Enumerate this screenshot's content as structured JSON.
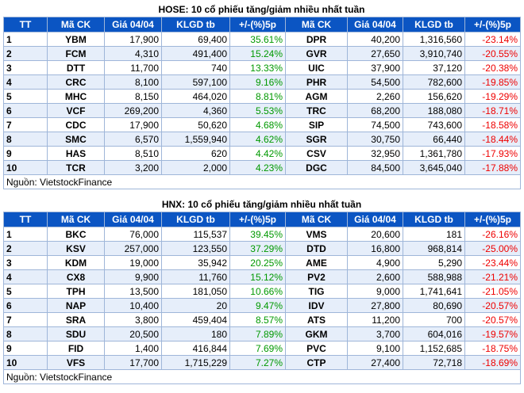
{
  "tables": [
    {
      "title": "HOSE: 10 cổ phiếu tăng/giảm nhiều nhất tuần",
      "headers": [
        "TT",
        "Mã CK",
        "Giá 04/04",
        "KLGD tb",
        "+/-(%)5p",
        "Mã CK",
        "Giá 04/04",
        "KLGD tb",
        "+/-(%)5p"
      ],
      "rows": [
        [
          "1",
          "YBM",
          "17,900",
          "69,400",
          "35.61%",
          "DPR",
          "40,200",
          "1,316,560",
          "-23.14%"
        ],
        [
          "2",
          "FCM",
          "4,310",
          "491,400",
          "15.24%",
          "GVR",
          "27,650",
          "3,910,740",
          "-20.55%"
        ],
        [
          "3",
          "DTT",
          "11,700",
          "740",
          "13.33%",
          "UIC",
          "37,900",
          "37,120",
          "-20.38%"
        ],
        [
          "4",
          "CRC",
          "8,100",
          "597,100",
          "9.16%",
          "PHR",
          "54,500",
          "782,600",
          "-19.85%"
        ],
        [
          "5",
          "MHC",
          "8,150",
          "464,020",
          "8.81%",
          "AGM",
          "2,260",
          "156,620",
          "-19.29%"
        ],
        [
          "6",
          "VCF",
          "269,200",
          "4,360",
          "5.53%",
          "TRC",
          "68,200",
          "188,080",
          "-18.71%"
        ],
        [
          "7",
          "CDC",
          "17,900",
          "50,620",
          "4.68%",
          "SIP",
          "74,500",
          "743,600",
          "-18.58%"
        ],
        [
          "8",
          "SMC",
          "6,570",
          "1,559,940",
          "4.62%",
          "SGR",
          "30,750",
          "66,440",
          "-18.44%"
        ],
        [
          "9",
          "HAS",
          "8,510",
          "620",
          "4.42%",
          "CSV",
          "32,950",
          "1,361,780",
          "-17.93%"
        ],
        [
          "10",
          "TCR",
          "3,200",
          "2,000",
          "4.23%",
          "DGC",
          "84,500",
          "3,645,040",
          "-17.88%"
        ]
      ],
      "source": "Nguồn: VietstockFinance"
    },
    {
      "title": "HNX: 10 cổ phiếu tăng/giảm nhiều nhất tuần",
      "headers": [
        "TT",
        "Mã CK",
        "Giá 04/04",
        "KLGD tb",
        "+/-(%)5p",
        "Mã CK",
        "Giá 04/04",
        "KLGD tb",
        "+/-(%)5p"
      ],
      "rows": [
        [
          "1",
          "BKC",
          "76,000",
          "115,537",
          "39.45%",
          "VMS",
          "20,600",
          "181",
          "-26.16%"
        ],
        [
          "2",
          "KSV",
          "257,000",
          "123,550",
          "37.29%",
          "DTD",
          "16,800",
          "968,814",
          "-25.00%"
        ],
        [
          "3",
          "KDM",
          "19,000",
          "35,942",
          "20.25%",
          "AME",
          "4,900",
          "5,290",
          "-23.44%"
        ],
        [
          "4",
          "CX8",
          "9,900",
          "11,760",
          "15.12%",
          "PV2",
          "2,600",
          "588,988",
          "-21.21%"
        ],
        [
          "5",
          "TPH",
          "13,500",
          "181,050",
          "10.66%",
          "TIG",
          "9,000",
          "1,741,641",
          "-21.05%"
        ],
        [
          "6",
          "NAP",
          "10,400",
          "20",
          "9.47%",
          "IDV",
          "27,800",
          "80,690",
          "-20.57%"
        ],
        [
          "7",
          "SRA",
          "3,800",
          "459,404",
          "8.57%",
          "ATS",
          "11,200",
          "700",
          "-20.57%"
        ],
        [
          "8",
          "SDU",
          "20,500",
          "180",
          "7.89%",
          "GKM",
          "3,700",
          "604,016",
          "-19.57%"
        ],
        [
          "9",
          "FID",
          "1,400",
          "416,844",
          "7.69%",
          "PVC",
          "9,100",
          "1,152,685",
          "-18.75%"
        ],
        [
          "10",
          "VFS",
          "17,700",
          "1,715,229",
          "7.27%",
          "CTP",
          "27,400",
          "72,718",
          "-18.69%"
        ]
      ],
      "source": "Nguồn: VietstockFinance"
    }
  ]
}
